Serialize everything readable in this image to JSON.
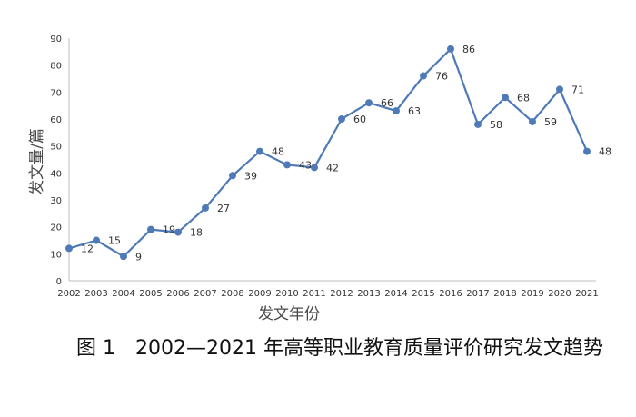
{
  "caption": "图 1　2002—2021 年高等职业教育质量评价研究发文趋势",
  "chart_data": {
    "type": "line",
    "x": [
      "2002",
      "2003",
      "2004",
      "2005",
      "2006",
      "2007",
      "2008",
      "2009",
      "2010",
      "2011",
      "2012",
      "2013",
      "2014",
      "2015",
      "2016",
      "2017",
      "2018",
      "2019",
      "2020",
      "2021"
    ],
    "series": [
      {
        "values": [
          12,
          15,
          9,
          19,
          18,
          27,
          39,
          48,
          43,
          42,
          60,
          66,
          63,
          76,
          86,
          58,
          68,
          59,
          71,
          48
        ]
      }
    ],
    "data_labels": [
      "12",
      "15",
      "9",
      "19",
      "18",
      "27",
      "39",
      "48",
      "43",
      "42",
      "60",
      "66",
      "63",
      "76",
      "86",
      "58",
      "68",
      "59",
      "71",
      "48"
    ],
    "xlabel": "发文年份",
    "ylabel": "发文量/篇",
    "ylim": [
      0,
      90
    ],
    "yticks": [
      0,
      10,
      20,
      30,
      40,
      50,
      60,
      70,
      80,
      90
    ],
    "grid": false,
    "legend": "none",
    "colors": {
      "line": "#4f7ab8",
      "axis": "#bfbfbf",
      "text": "#333333"
    }
  }
}
